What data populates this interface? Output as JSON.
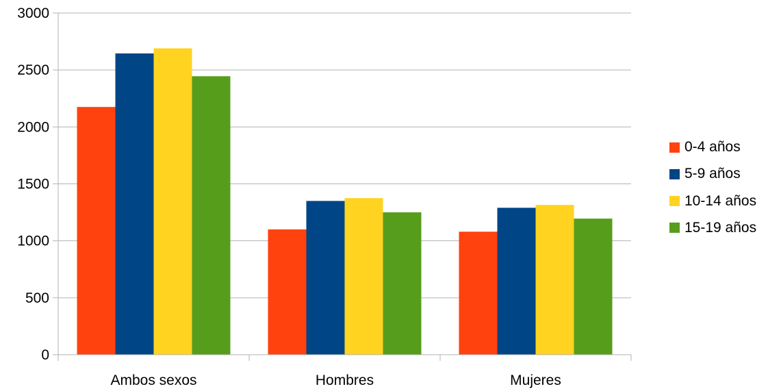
{
  "chart_data": {
    "type": "bar",
    "title": "",
    "xlabel": "",
    "ylabel": "",
    "categories": [
      "Ambos sexos",
      "Hombres",
      "Mujeres"
    ],
    "series": [
      {
        "name": "0-4 años",
        "color": "#ff420e",
        "values": [
          2175,
          1100,
          1080
        ]
      },
      {
        "name": "5-9 años",
        "color": "#004586",
        "values": [
          2645,
          1350,
          1290
        ]
      },
      {
        "name": "10-14 años",
        "color": "#ffd320",
        "values": [
          2690,
          1375,
          1315
        ]
      },
      {
        "name": "15-19 años",
        "color": "#579d1c",
        "values": [
          2445,
          1250,
          1195
        ]
      }
    ],
    "ylim": [
      0,
      3000
    ],
    "yticks": [
      "0",
      "500",
      "1000",
      "1500",
      "2000",
      "2500",
      "3000"
    ],
    "grid": true,
    "gridColor": "#b3b3b3",
    "legend_position": "right"
  }
}
